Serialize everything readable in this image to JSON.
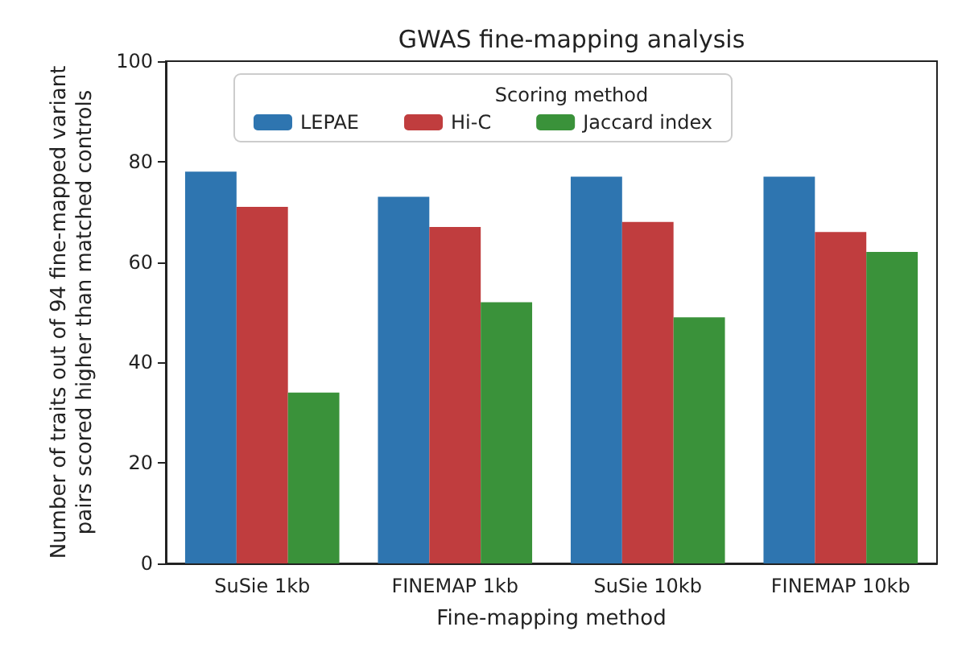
{
  "chart_data": {
    "type": "bar",
    "title": "GWAS fine-mapping analysis",
    "xlabel": "Fine-mapping method",
    "ylabel": "Number of traits out of 94 fine-mapped variant\npairs scored higher than matched controls",
    "legend_title": "Scoring method",
    "categories": [
      "SuSie 1kb",
      "FINEMAP 1kb",
      "SuSie 10kb",
      "FINEMAP 10kb"
    ],
    "series": [
      {
        "name": "LEPAE",
        "color": "#2e75b0",
        "values": [
          78,
          73,
          77,
          77
        ]
      },
      {
        "name": "Hi-C",
        "color": "#c03d3e",
        "values": [
          71,
          67,
          68,
          66
        ]
      },
      {
        "name": "Jaccard index",
        "color": "#3a923a",
        "values": [
          34,
          52,
          49,
          62
        ]
      }
    ],
    "ylim": [
      0,
      100
    ],
    "yticks": [
      0,
      20,
      40,
      60,
      80,
      100
    ],
    "legend": "top",
    "grid": false
  }
}
